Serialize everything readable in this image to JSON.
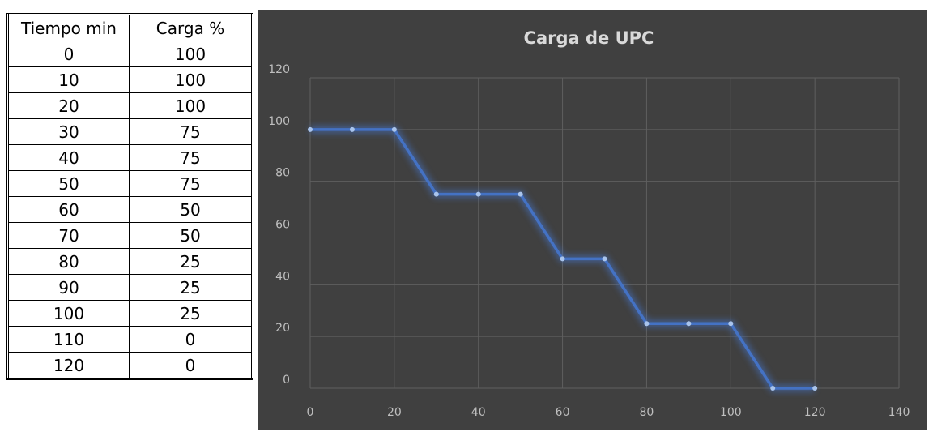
{
  "table": {
    "header": [
      "Tiempo min",
      "Carga %"
    ],
    "rows": [
      [
        0,
        100
      ],
      [
        10,
        100
      ],
      [
        20,
        100
      ],
      [
        30,
        75
      ],
      [
        40,
        75
      ],
      [
        50,
        75
      ],
      [
        60,
        50
      ],
      [
        70,
        50
      ],
      [
        80,
        25
      ],
      [
        90,
        25
      ],
      [
        100,
        25
      ],
      [
        110,
        0
      ],
      [
        120,
        0
      ]
    ]
  },
  "chart_data": {
    "type": "line",
    "title": "Carga de UPC",
    "x": [
      0,
      10,
      20,
      30,
      40,
      50,
      60,
      70,
      80,
      90,
      100,
      110,
      120
    ],
    "series": [
      {
        "name": "Carga %",
        "color": "#4472c4",
        "values": [
          100,
          100,
          100,
          75,
          75,
          75,
          50,
          50,
          25,
          25,
          25,
          0,
          0
        ]
      }
    ],
    "xlim": [
      0,
      140
    ],
    "xticks": [
      0,
      20,
      40,
      60,
      80,
      100,
      120,
      140
    ],
    "ylim": [
      0,
      120
    ],
    "yticks": [
      0,
      20,
      40,
      60,
      80,
      100,
      120
    ],
    "grid": true
  }
}
